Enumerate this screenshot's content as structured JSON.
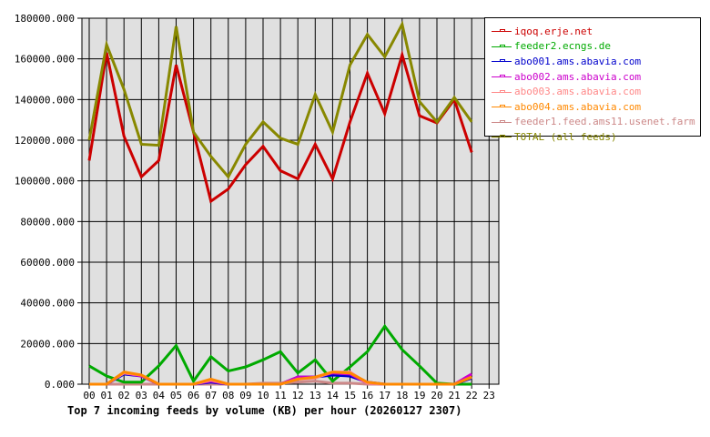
{
  "chart_data": {
    "type": "line",
    "title": "Top 7 incoming feeds by volume (KB) per hour (20260127 2307)",
    "xlabel": "",
    "ylabel": "",
    "ylim": [
      0,
      180000
    ],
    "grid": true,
    "legend_position": "right",
    "y_ticks": [
      "0.000",
      "20000.000",
      "40000.000",
      "60000.000",
      "80000.000",
      "100000.000",
      "120000.000",
      "140000.000",
      "160000.000",
      "180000.000"
    ],
    "x": [
      "00",
      "01",
      "02",
      "03",
      "04",
      "05",
      "06",
      "07",
      "08",
      "09",
      "10",
      "11",
      "12",
      "13",
      "14",
      "15",
      "16",
      "17",
      "18",
      "19",
      "20",
      "21",
      "22",
      "23"
    ],
    "series": [
      {
        "name": "iqoq.erje.net",
        "color": "#cc0000",
        "values": [
          110000,
          163000,
          122000,
          102000,
          110000,
          157000,
          124000,
          90000,
          96000,
          108000,
          117000,
          105000,
          101000,
          118000,
          101000,
          129000,
          153000,
          133000,
          162000,
          132000,
          128500,
          140000,
          114000
        ]
      },
      {
        "name": "feeder2.ecngs.de",
        "color": "#00aa00",
        "values": [
          9000,
          4000,
          1000,
          1000,
          9000,
          19000,
          1500,
          13500,
          6500,
          8500,
          12000,
          16000,
          5500,
          12000,
          1500,
          8500,
          16000,
          28500,
          17000,
          9000,
          500,
          0,
          0
        ]
      },
      {
        "name": "abo001.ams.abavia.com",
        "color": "#0000cc",
        "values": [
          0,
          0,
          5000,
          4000,
          0,
          0,
          0,
          1000,
          0,
          0,
          0,
          0,
          3500,
          3500,
          4500,
          4000,
          1000,
          0,
          0,
          0,
          0,
          0,
          3000
        ]
      },
      {
        "name": "abo002.ams.abavia.com",
        "color": "#cc00cc",
        "values": [
          0,
          0,
          5500,
          4000,
          0,
          0,
          0,
          1500,
          0,
          0,
          0,
          0,
          3500,
          3500,
          5500,
          5000,
          500,
          0,
          0,
          0,
          0,
          0,
          5000
        ]
      },
      {
        "name": "abo003.ams.abavia.com",
        "color": "#ff8888",
        "values": [
          0,
          0,
          5500,
          4500,
          0,
          0,
          0,
          2000,
          0,
          0,
          0,
          0,
          2500,
          3000,
          6000,
          6000,
          500,
          0,
          0,
          0,
          0,
          0,
          3500
        ]
      },
      {
        "name": "abo004.ams.abavia.com",
        "color": "#ff8800",
        "values": [
          0,
          0,
          6000,
          4500,
          0,
          0,
          0,
          2500,
          0,
          0,
          0,
          0,
          2500,
          3500,
          6000,
          5500,
          1000,
          0,
          0,
          0,
          0,
          0,
          3500
        ]
      },
      {
        "name": "feeder1.feed.ams11.usenet.farm",
        "color": "#cc8888",
        "values": [
          0,
          0,
          0,
          0,
          0,
          0,
          0,
          0,
          0,
          0,
          500,
          500,
          1000,
          1500,
          500,
          500,
          0,
          0,
          0,
          0,
          0,
          0,
          0
        ]
      },
      {
        "name": "TOTAL (all feeds)",
        "color": "#888800",
        "values": [
          120000,
          167000,
          145000,
          118000,
          117500,
          176000,
          124000,
          112000,
          102000,
          118000,
          129000,
          121000,
          118000,
          142500,
          124000,
          157000,
          172000,
          161000,
          177000,
          139000,
          129000,
          141000,
          129000
        ]
      }
    ]
  },
  "legend": {
    "items": [
      {
        "label": "iqoq.erje.net",
        "color": "#cc0000"
      },
      {
        "label": "feeder2.ecngs.de",
        "color": "#00aa00"
      },
      {
        "label": "abo001.ams.abavia.com",
        "color": "#0000cc"
      },
      {
        "label": "abo002.ams.abavia.com",
        "color": "#cc00cc"
      },
      {
        "label": "abo003.ams.abavia.com",
        "color": "#ff8888"
      },
      {
        "label": "abo004.ams.abavia.com",
        "color": "#ff8800"
      },
      {
        "label": "feeder1.feed.ams11.usenet.farm",
        "color": "#cc8888"
      },
      {
        "label": "TOTAL (all feeds)",
        "color": "#888800"
      }
    ]
  },
  "footer": {
    "title": "Top 7 incoming feeds by volume (KB) per hour (20260127 2307)"
  }
}
